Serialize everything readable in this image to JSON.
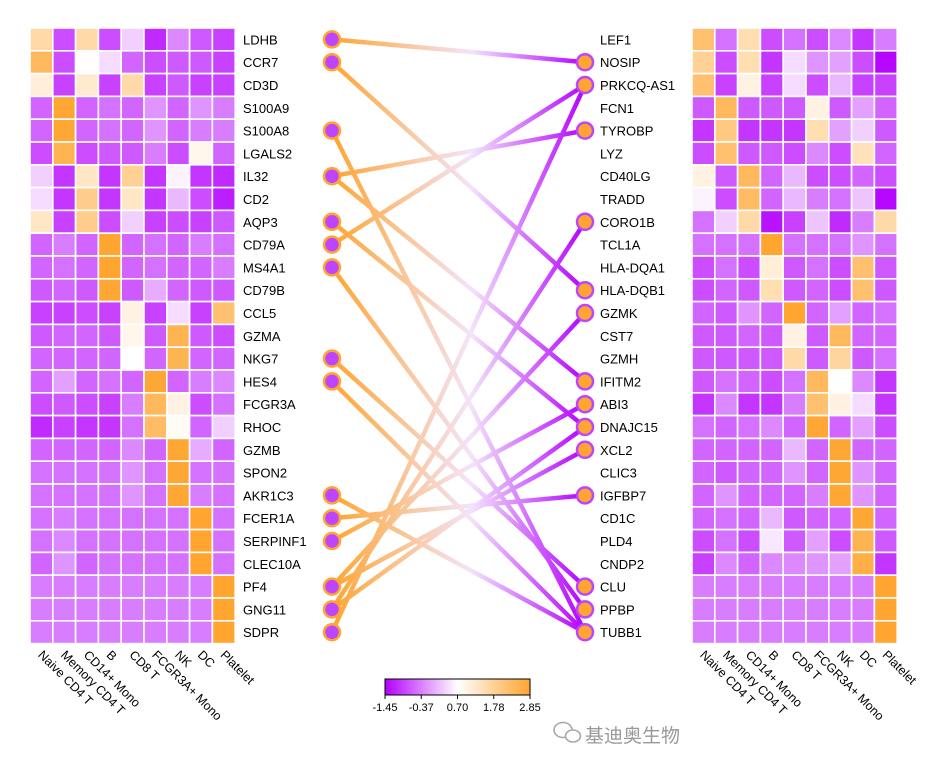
{
  "chart_data": {
    "type": "heatmap",
    "columns": [
      "Naive CD4 T",
      "Memory CD4 T",
      "CD14+ Mono",
      "B",
      "CD8 T",
      "FCGR3A+ Mono",
      "NK",
      "DC",
      "Platelet"
    ],
    "color_scale": {
      "min": -1.45,
      "mid": 0.7,
      "max": 2.85,
      "ticks": [
        "-1.45",
        "-0.37",
        "0.70",
        "1.78",
        "2.85"
      ],
      "colors": {
        "low": "#b400ff",
        "mid": "#ffffff",
        "high": "#ffa530"
      }
    },
    "left_heatmap": {
      "genes": [
        "LDHB",
        "CCR7",
        "CD3D",
        "S100A9",
        "S100A8",
        "LGALS2",
        "IL32",
        "CD2",
        "AQP3",
        "CD79A",
        "MS4A1",
        "CD79B",
        "CCL5",
        "GZMA",
        "NKG7",
        "HES4",
        "FCGR3A",
        "RHOC",
        "GZMB",
        "SPON2",
        "AKR1C3",
        "FCER1A",
        "SERPINF1",
        "CLEC10A",
        "PF4",
        "GNG11",
        "SDPR"
      ],
      "values": [
        [
          1.6,
          -0.8,
          1.6,
          -0.8,
          0.3,
          -1.1,
          -0.3,
          -0.7,
          -0.9
        ],
        [
          2.4,
          -0.8,
          0.7,
          0.4,
          -0.6,
          -0.8,
          -0.7,
          -0.7,
          -0.9
        ],
        [
          1.1,
          -0.9,
          1.2,
          -0.9,
          1.6,
          -0.9,
          -0.7,
          -0.9,
          -0.9
        ],
        [
          -0.6,
          2.8,
          -0.6,
          -0.5,
          -0.6,
          -0.2,
          -0.6,
          -0.2,
          -0.4
        ],
        [
          -0.6,
          2.8,
          -0.6,
          -0.5,
          -0.6,
          -0.2,
          -0.6,
          -0.4,
          -0.4
        ],
        [
          -0.8,
          2.5,
          -0.8,
          -0.7,
          -0.7,
          -0.4,
          -0.8,
          0.9,
          -0.6
        ],
        [
          0.3,
          -1.0,
          1.3,
          -1.0,
          1.8,
          -1.0,
          0.6,
          -1.0,
          -1.1
        ],
        [
          0.4,
          -1.0,
          1.9,
          -1.0,
          1.3,
          -1.0,
          0.1,
          -0.8,
          -1.2
        ],
        [
          1.3,
          -0.9,
          1.9,
          -0.8,
          0.3,
          -0.9,
          -0.8,
          -0.9,
          -0.7
        ],
        [
          -0.6,
          -0.4,
          -0.6,
          2.85,
          -0.6,
          -0.5,
          -0.6,
          -0.4,
          -0.5
        ],
        [
          -0.6,
          -0.5,
          -0.6,
          2.85,
          -0.6,
          -0.5,
          -0.6,
          -0.6,
          -0.4
        ],
        [
          -0.7,
          -0.6,
          -0.7,
          2.8,
          -0.7,
          0.0,
          -0.6,
          -0.7,
          -0.7
        ],
        [
          -0.9,
          -0.9,
          -0.8,
          -0.9,
          1.0,
          -0.9,
          0.4,
          -0.9,
          2.2
        ],
        [
          -0.7,
          -0.6,
          -0.6,
          -0.7,
          0.9,
          -0.7,
          2.5,
          -0.7,
          -0.8
        ],
        [
          -0.6,
          -0.6,
          -0.6,
          -0.6,
          0.7,
          -0.6,
          2.5,
          -0.6,
          -0.6
        ],
        [
          -0.6,
          -0.1,
          -0.6,
          -0.5,
          -0.6,
          2.8,
          -0.6,
          -0.4,
          -0.3
        ],
        [
          -0.8,
          -0.7,
          -0.8,
          -0.9,
          -0.4,
          2.4,
          1.0,
          -0.8,
          -0.5
        ],
        [
          -1.1,
          -0.9,
          -1.0,
          -1.0,
          -0.5,
          2.3,
          0.8,
          -0.6,
          0.3
        ],
        [
          -0.6,
          -0.6,
          -0.6,
          -0.6,
          -0.3,
          -0.6,
          2.8,
          0.0,
          -0.6
        ],
        [
          -0.5,
          -0.5,
          -0.5,
          -0.5,
          -0.2,
          -0.5,
          2.8,
          -0.5,
          -0.5
        ],
        [
          -0.5,
          -0.5,
          -0.5,
          -0.5,
          -0.2,
          -0.5,
          2.8,
          -0.4,
          -0.5
        ],
        [
          -0.5,
          -0.4,
          -0.5,
          -0.5,
          -0.5,
          -0.5,
          -0.5,
          2.85,
          -0.5
        ],
        [
          -0.5,
          -0.3,
          -0.5,
          -0.5,
          -0.5,
          -0.5,
          -0.5,
          2.85,
          -0.5
        ],
        [
          -0.6,
          -0.2,
          -0.6,
          -0.5,
          -0.5,
          -0.5,
          -0.5,
          2.85,
          -0.5
        ],
        [
          -0.4,
          -0.4,
          -0.4,
          -0.4,
          -0.4,
          -0.4,
          -0.4,
          -0.4,
          2.85
        ],
        [
          -0.4,
          -0.4,
          -0.4,
          -0.4,
          -0.4,
          -0.4,
          -0.4,
          -0.4,
          2.85
        ],
        [
          -0.4,
          -0.4,
          -0.4,
          -0.4,
          -0.4,
          -0.4,
          -0.4,
          -0.4,
          2.85
        ]
      ]
    },
    "right_heatmap": {
      "genes": [
        "LEF1",
        "NOSIP",
        "PRKCQ-AS1",
        "FCN1",
        "TYROBP",
        "LYZ",
        "CD40LG",
        "TRADD",
        "CORO1B",
        "TCL1A",
        "HLA-DQA1",
        "HLA-DQB1",
        "GZMK",
        "CST7",
        "GZMH",
        "IFITM2",
        "ABI3",
        "DNAJC15",
        "XCL2",
        "CLIC3",
        "IGFBP7",
        "CD1C",
        "PLD4",
        "CNDP2",
        "CLU",
        "PPBP",
        "TUBB1"
      ],
      "values": [
        [
          2.2,
          -0.5,
          1.5,
          -0.8,
          -0.5,
          -0.8,
          -0.3,
          -1.0,
          -0.4
        ],
        [
          1.8,
          -0.8,
          1.5,
          -1.0,
          0.4,
          -0.2,
          -0.1,
          -0.8,
          -1.4
        ],
        [
          2.2,
          -0.9,
          1.0,
          -0.9,
          0.4,
          -0.8,
          0.1,
          -0.9,
          -0.9
        ],
        [
          -0.7,
          2.4,
          -0.7,
          -0.7,
          -0.7,
          1.0,
          -0.7,
          -0.1,
          -0.6
        ],
        [
          -1.0,
          2.0,
          -1.0,
          -1.0,
          -1.0,
          1.5,
          -0.1,
          0.3,
          -0.7
        ],
        [
          -0.8,
          2.2,
          -0.7,
          -0.7,
          -0.8,
          -0.3,
          -0.8,
          1.4,
          -0.6
        ],
        [
          1.0,
          -0.7,
          2.4,
          -0.6,
          0.1,
          -0.8,
          -0.8,
          -0.6,
          -0.8
        ],
        [
          0.6,
          -0.8,
          2.3,
          -0.6,
          0.1,
          -0.4,
          -0.5,
          0.2,
          -1.4
        ],
        [
          -0.5,
          0.3,
          1.6,
          -1.3,
          -0.9,
          0.2,
          -1.1,
          -0.4,
          1.6
        ],
        [
          -0.5,
          -0.5,
          -0.5,
          2.85,
          -0.5,
          -0.5,
          -0.5,
          -0.2,
          -0.5
        ],
        [
          -0.8,
          -0.5,
          -0.8,
          1.1,
          -0.7,
          -0.5,
          -0.8,
          2.2,
          -0.7
        ],
        [
          -0.8,
          -0.6,
          -0.7,
          1.5,
          -0.7,
          -0.6,
          -0.8,
          2.2,
          -0.7
        ],
        [
          -0.6,
          -0.7,
          -0.2,
          -0.6,
          2.85,
          -0.6,
          -0.1,
          -0.6,
          -0.5
        ],
        [
          -0.7,
          -0.7,
          -0.6,
          -0.7,
          1.0,
          -0.7,
          2.4,
          -0.6,
          -0.6
        ],
        [
          -0.7,
          -0.7,
          -0.7,
          -0.7,
          1.6,
          -0.7,
          1.7,
          -0.7,
          -0.5
        ],
        [
          -0.7,
          -0.5,
          -0.6,
          -0.8,
          -0.5,
          2.4,
          0.7,
          -0.3,
          -1.0
        ],
        [
          -1.0,
          -0.3,
          -1.0,
          -1.0,
          -0.4,
          2.2,
          1.0,
          0.4,
          -1.0
        ],
        [
          -0.5,
          -0.6,
          -0.5,
          -0.3,
          -0.6,
          2.8,
          -0.6,
          -0.1,
          -0.8
        ],
        [
          -0.6,
          -0.6,
          -0.6,
          -0.6,
          0.1,
          -0.6,
          2.8,
          -0.6,
          -0.6
        ],
        [
          -0.6,
          -0.7,
          -0.6,
          -0.6,
          -0.2,
          -0.6,
          2.8,
          -0.2,
          -0.6
        ],
        [
          -0.6,
          -0.2,
          -0.6,
          -0.6,
          -0.6,
          -0.4,
          2.8,
          -0.2,
          -0.6
        ],
        [
          -0.6,
          -0.5,
          -0.6,
          0.1,
          -0.7,
          -0.6,
          -0.6,
          2.8,
          -0.6
        ],
        [
          -0.8,
          -0.5,
          -0.8,
          0.5,
          -0.7,
          -0.1,
          -0.8,
          2.5,
          -0.7
        ],
        [
          -0.9,
          -0.3,
          -0.6,
          -0.3,
          -0.3,
          -0.2,
          -0.1,
          2.6,
          -1.0
        ],
        [
          -0.4,
          -0.4,
          -0.4,
          -0.4,
          -0.4,
          -0.4,
          -0.4,
          -0.4,
          2.85
        ],
        [
          -0.4,
          -0.4,
          -0.4,
          -0.4,
          -0.4,
          -0.4,
          -0.4,
          -0.4,
          2.85
        ],
        [
          -0.4,
          -0.4,
          -0.4,
          -0.4,
          -0.4,
          -0.4,
          -0.4,
          -0.4,
          2.85
        ]
      ]
    },
    "links": [
      [
        "LDHB",
        "NOSIP"
      ],
      [
        "CCR7",
        "HLA-DQB1"
      ],
      [
        "S100A8",
        "TUBB1"
      ],
      [
        "IL32",
        "TYROBP"
      ],
      [
        "IL32",
        "IFITM2"
      ],
      [
        "AQP3",
        "DNAJC15"
      ],
      [
        "CD79A",
        "PRKCQ-AS1"
      ],
      [
        "MS4A1",
        "PPBP"
      ],
      [
        "NKG7",
        "CLU"
      ],
      [
        "HES4",
        "TUBB1"
      ],
      [
        "AKR1C3",
        "TUBB1"
      ],
      [
        "FCER1A",
        "IGFBP7"
      ],
      [
        "SERPINF1",
        "ABI3"
      ],
      [
        "PF4",
        "XCL2"
      ],
      [
        "PF4",
        "GZMK"
      ],
      [
        "GNG11",
        "CORO1B"
      ],
      [
        "GNG11",
        "DNAJC15"
      ],
      [
        "SDPR",
        "PRKCQ-AS1"
      ]
    ],
    "grid": false
  },
  "watermark": "基迪奥生物"
}
